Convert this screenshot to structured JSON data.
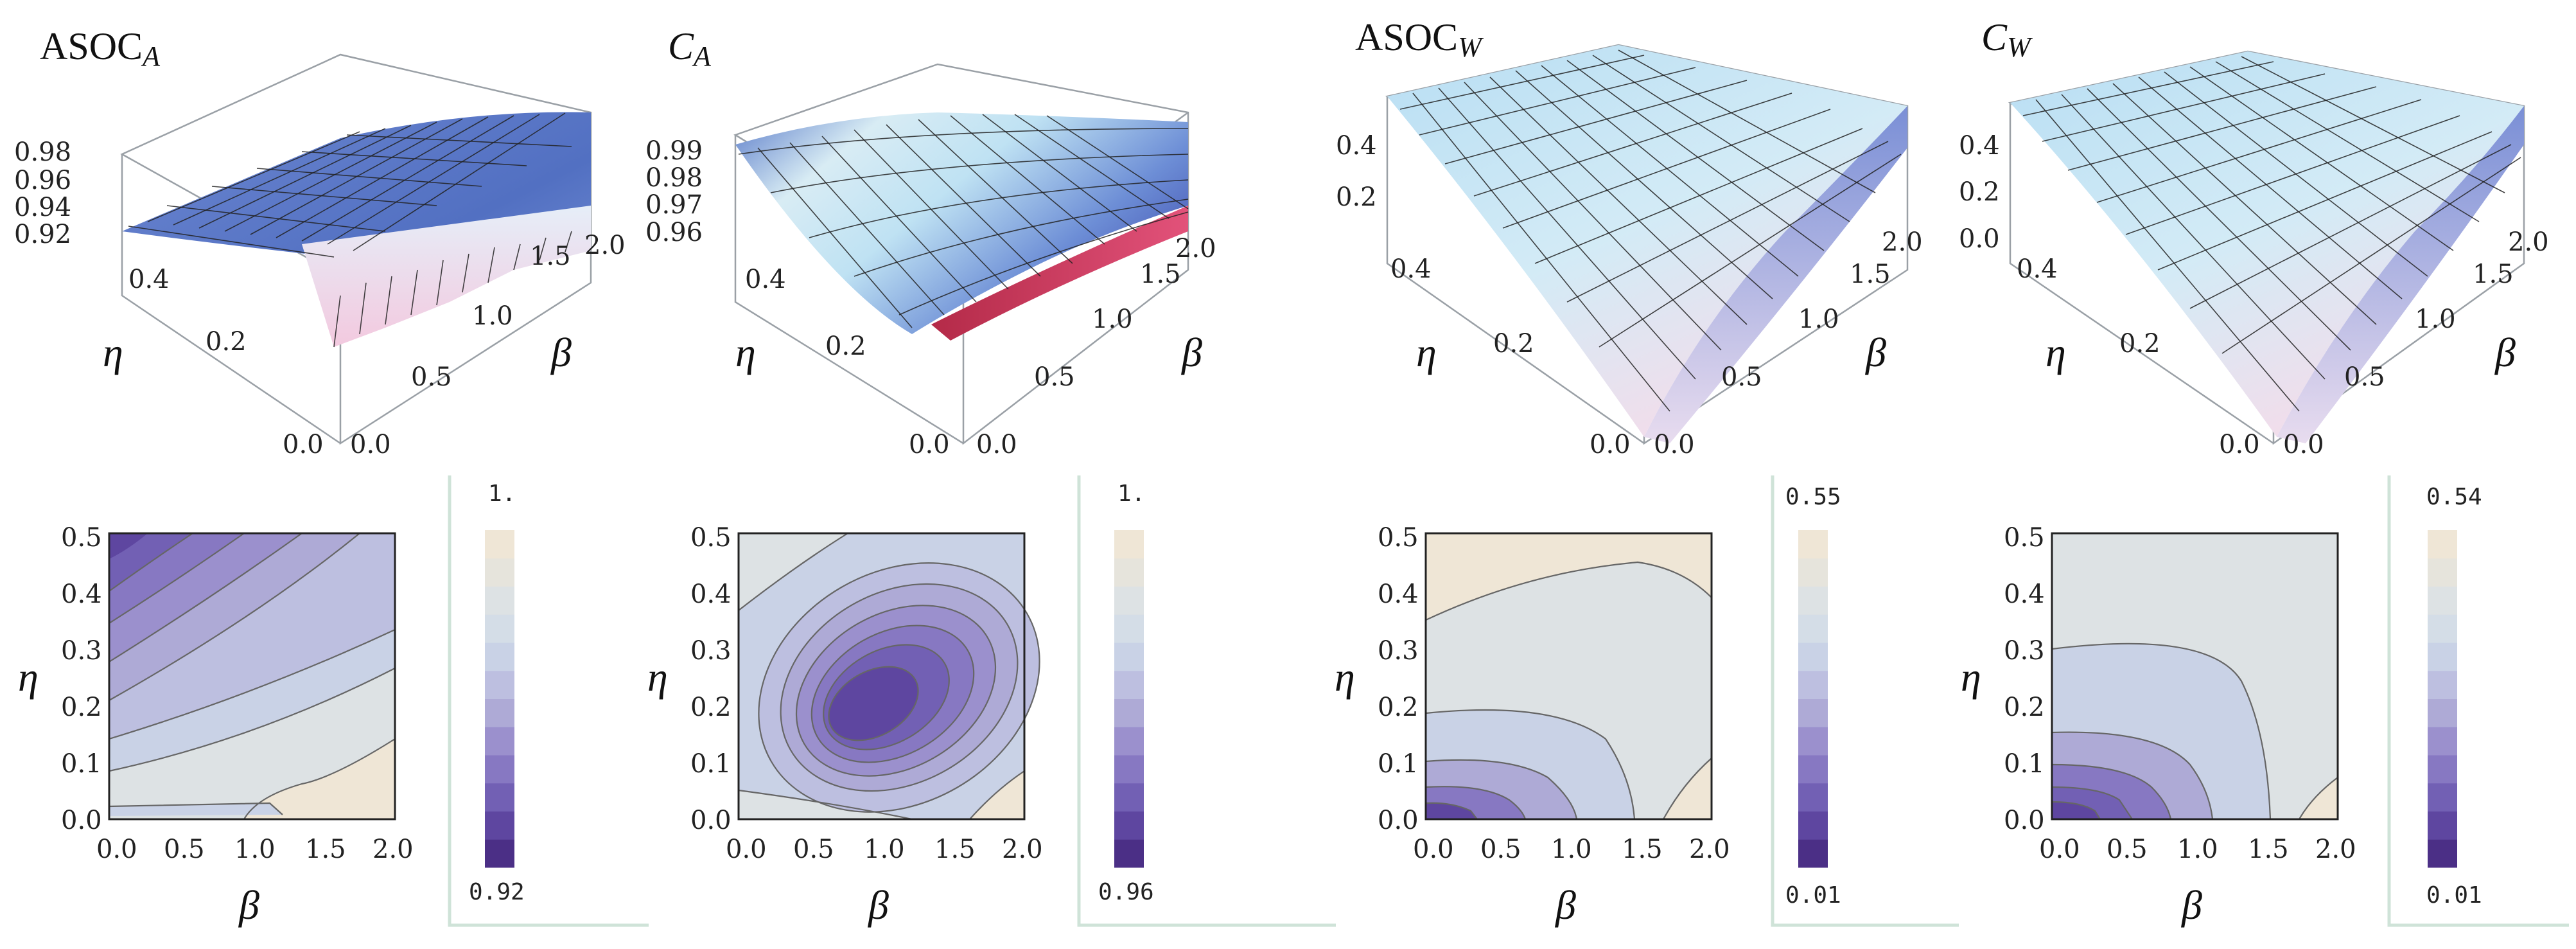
{
  "chart_data": [
    {
      "panel": "ASOC_A",
      "title": "ASOC",
      "title_sub": "A",
      "type": "surface+contour",
      "xlabel": "β",
      "ylabel": "η",
      "xlim": [
        0,
        2
      ],
      "ylim": [
        0,
        0.5
      ],
      "zlim": [
        0.92,
        1.0
      ],
      "surface_zticks": [
        "0.92",
        "0.94",
        "0.96",
        "0.98"
      ],
      "surface_yticks": [
        "0.0",
        "0.2",
        "0.4"
      ],
      "surface_xticks": [
        "0.0",
        "0.5",
        "1.0",
        "1.5",
        "2.0"
      ],
      "contour_xticks": [
        "0.0",
        "0.5",
        "1.0",
        "1.5",
        "2.0"
      ],
      "contour_yticks": [
        "0.0",
        "0.1",
        "0.2",
        "0.3",
        "0.4",
        "0.5"
      ],
      "legend_max": "1.",
      "legend_min": "0.92",
      "legend_levels": 12
    },
    {
      "panel": "C_A",
      "title": "C",
      "title_sub": "A",
      "type": "surface+contour",
      "xlabel": "β",
      "ylabel": "η",
      "xlim": [
        0,
        2
      ],
      "ylim": [
        0,
        0.5
      ],
      "zlim": [
        0.96,
        1.0
      ],
      "surface_zticks": [
        "0.96",
        "0.97",
        "0.98",
        "0.99"
      ],
      "surface_yticks": [
        "0.0",
        "0.2",
        "0.4"
      ],
      "surface_xticks": [
        "0.0",
        "0.5",
        "1.0",
        "1.5",
        "2.0"
      ],
      "contour_xticks": [
        "0.0",
        "0.5",
        "1.0",
        "1.5",
        "2.0"
      ],
      "contour_yticks": [
        "0.0",
        "0.1",
        "0.2",
        "0.3",
        "0.4",
        "0.5"
      ],
      "legend_max": "1.",
      "legend_min": "0.96",
      "legend_levels": 12
    },
    {
      "panel": "ASOC_W",
      "title": "ASOC",
      "title_sub": "W",
      "type": "surface+contour",
      "xlabel": "β",
      "ylabel": "η",
      "xlim": [
        0,
        2
      ],
      "ylim": [
        0,
        0.5
      ],
      "zlim": [
        0,
        0.55
      ],
      "surface_zticks": [
        "0.2",
        "0.4"
      ],
      "surface_yticks": [
        "0.0",
        "0.2",
        "0.4"
      ],
      "surface_xticks": [
        "0.0",
        "0.5",
        "1.0",
        "1.5",
        "2.0"
      ],
      "contour_xticks": [
        "0.0",
        "0.5",
        "1.0",
        "1.5",
        "2.0"
      ],
      "contour_yticks": [
        "0.0",
        "0.1",
        "0.2",
        "0.3",
        "0.4",
        "0.5"
      ],
      "legend_max": "0.55",
      "legend_min": "0.01",
      "legend_levels": 12
    },
    {
      "panel": "C_W",
      "title": "C",
      "title_sub": "W",
      "type": "surface+contour",
      "xlabel": "β",
      "ylabel": "η",
      "xlim": [
        0,
        2
      ],
      "ylim": [
        0,
        0.5
      ],
      "zlim": [
        0,
        0.54
      ],
      "surface_zticks": [
        "0.0",
        "0.2",
        "0.4"
      ],
      "surface_yticks": [
        "0.0",
        "0.2",
        "0.4"
      ],
      "surface_xticks": [
        "0.0",
        "0.5",
        "1.0",
        "1.5",
        "2.0"
      ],
      "contour_xticks": [
        "0.0",
        "0.5",
        "1.0",
        "1.5",
        "2.0"
      ],
      "contour_yticks": [
        "0.0",
        "0.1",
        "0.2",
        "0.3",
        "0.4",
        "0.5"
      ],
      "legend_max": "0.54",
      "legend_min": "0.01",
      "legend_levels": 12
    }
  ],
  "palette": {
    "legend_colors": [
      "#4b2f86",
      "#5e46a0",
      "#7260b4",
      "#8778c2",
      "#9b90cd",
      "#aeaad6",
      "#bdbfe0",
      "#c9d2e6",
      "#d4dde7",
      "#dde2e4",
      "#e6e4dc",
      "#efe6d6"
    ],
    "surface_blue": "#5878c8",
    "surface_light": "#cfe8f6",
    "surface_pink": "#f1d6e6",
    "surface_red": "#d9425a"
  }
}
